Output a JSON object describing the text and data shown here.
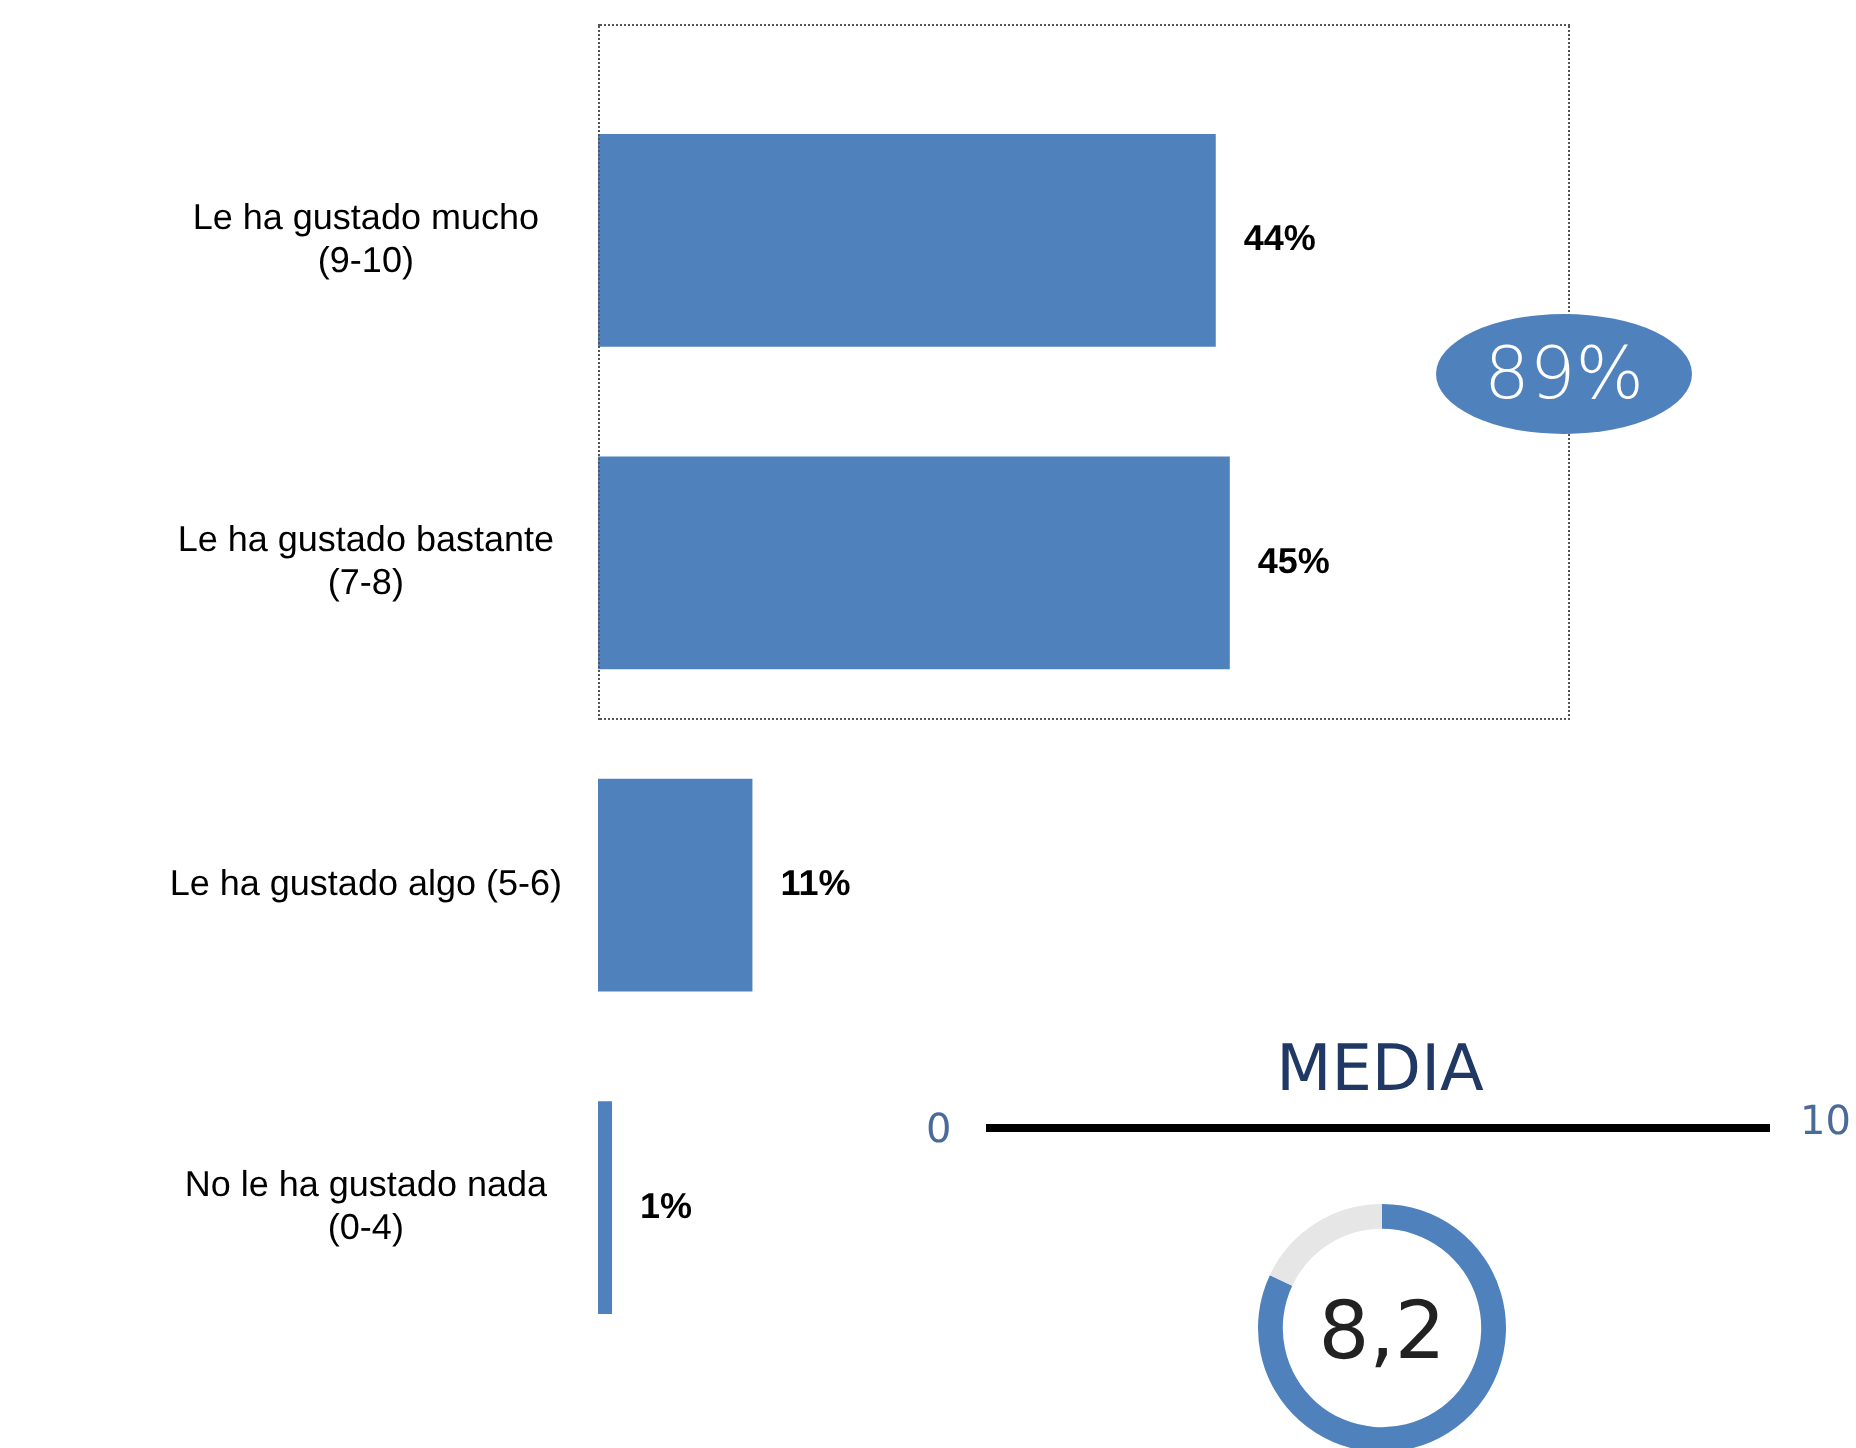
{
  "chart_data": [
    {
      "type": "bar",
      "orientation": "horizontal",
      "categories": [
        "Le ha gustado mucho  (9-10)",
        "Le ha gustado bastante (7-8)",
        "Le ha gustado algo (5-6)",
        "No le ha gustado nada (0-4)"
      ],
      "values": [
        44,
        45,
        11,
        1
      ],
      "color": "#4f81bd",
      "value_labels": [
        "44%",
        "45%",
        "11%",
        "1%"
      ],
      "annotations": [
        "89%"
      ],
      "legend": false
    },
    {
      "type": "donut",
      "title": "MEDIA",
      "categories": [
        null,
        null
      ],
      "values": [
        82,
        18
      ],
      "colors": [
        "#4f81bd",
        "#e6e6e6"
      ],
      "annotations": [
        "0",
        "10",
        "8,2"
      ],
      "legend": false
    }
  ]
}
